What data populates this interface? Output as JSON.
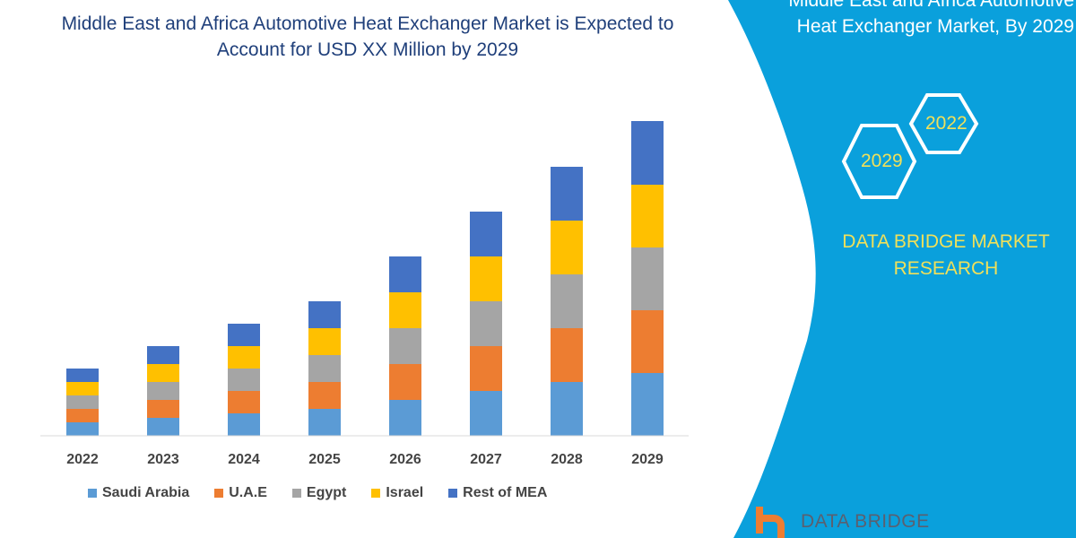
{
  "title_lines": [
    "Middle East and Africa Automotive Heat Exchanger Market is Expected to",
    "Account for USD XX Million by 2029"
  ],
  "side_panel": {
    "title_lines": [
      "Middle East and Africa Automotive",
      "Heat Exchanger Market, By 2029"
    ],
    "hex_labels": [
      "2022",
      "2029"
    ],
    "brand_lines": [
      "DATA BRIDGE MARKET",
      "RESEARCH"
    ],
    "logo_text": "DATA BRIDGE",
    "panel_color": "#0aa0dc",
    "text_accent_color": "#f0e05a"
  },
  "chart_data": {
    "type": "bar",
    "stacked": true,
    "title": "Middle East and Africa Automotive Heat Exchanger Market is Expected to Account for USD XX Million by 2029",
    "xlabel": "",
    "ylabel": "",
    "y_axis_shown": false,
    "grid": false,
    "legend_placement": "bottom",
    "categories": [
      "2022",
      "2023",
      "2024",
      "2025",
      "2026",
      "2027",
      "2028",
      "2029"
    ],
    "series": [
      {
        "name": "Saudi Arabia",
        "color": "#5b9bd5",
        "values": [
          15,
          20,
          25,
          30,
          40,
          50,
          60,
          70
        ]
      },
      {
        "name": "U.A.E",
        "color": "#ed7d31",
        "values": [
          15,
          20,
          25,
          30,
          40,
          50,
          60,
          70
        ]
      },
      {
        "name": "Egypt",
        "color": "#a5a5a5",
        "values": [
          15,
          20,
          25,
          30,
          40,
          50,
          60,
          70
        ]
      },
      {
        "name": "Israel",
        "color": "#ffc000",
        "values": [
          15,
          20,
          25,
          30,
          40,
          50,
          60,
          70
        ]
      },
      {
        "name": "Rest of MEA",
        "color": "#4472c4",
        "values": [
          15,
          20,
          25,
          30,
          40,
          50,
          60,
          71
        ]
      }
    ]
  }
}
